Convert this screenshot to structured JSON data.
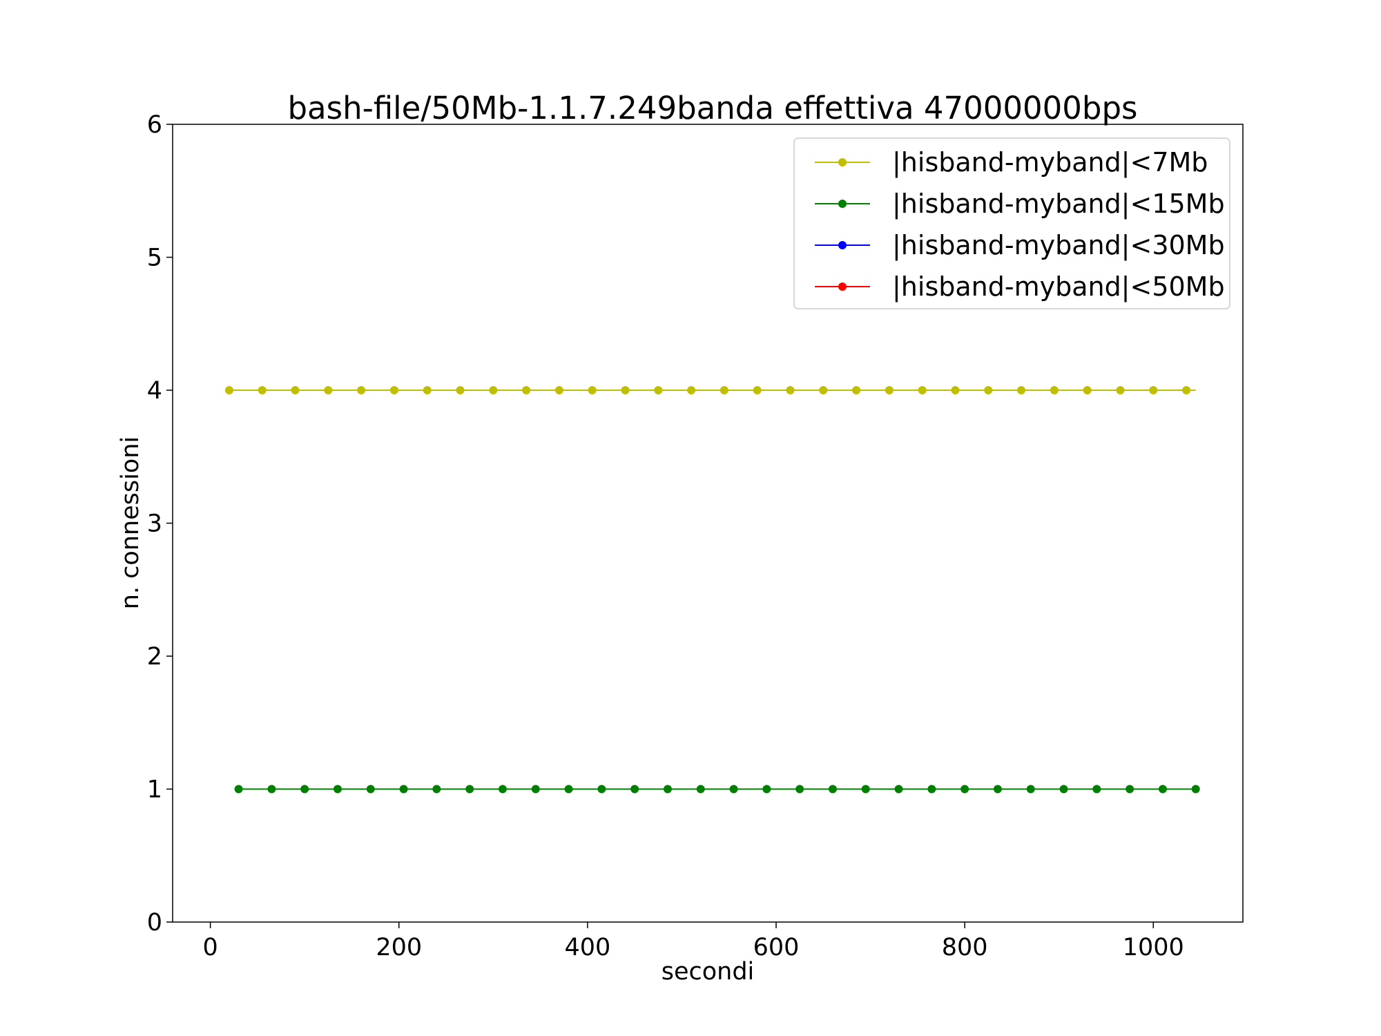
{
  "chart_data": {
    "type": "line",
    "title": "bash-file/50Mb-1.1.7.249banda effettiva 47000000bps",
    "xlabel": "secondi",
    "ylabel": "n. connessioni",
    "xlim": [
      -40,
      1095
    ],
    "ylim": [
      0,
      6
    ],
    "xticks": [
      0,
      200,
      400,
      600,
      800,
      1000
    ],
    "yticks": [
      0,
      1,
      2,
      3,
      4,
      5,
      6
    ],
    "grid": false,
    "legend_position": "top-right",
    "series": [
      {
        "name": "|hisband-myband|<7Mb",
        "color": "#bfbf00",
        "x": [
          20,
          55,
          90,
          125,
          160,
          195,
          230,
          265,
          300,
          335,
          370,
          405,
          440,
          475,
          510,
          545,
          580,
          615,
          650,
          685,
          720,
          755,
          790,
          825,
          860,
          895,
          930,
          965,
          1000,
          1035
        ],
        "y": [
          4,
          4,
          4,
          4,
          4,
          4,
          4,
          4,
          4,
          4,
          4,
          4,
          4,
          4,
          4,
          4,
          4,
          4,
          4,
          4,
          4,
          4,
          4,
          4,
          4,
          4,
          4,
          4,
          4,
          4
        ],
        "line_end_x": 1045
      },
      {
        "name": "|hisband-myband|<15Mb",
        "color": "#008000",
        "x": [
          30,
          65,
          100,
          135,
          170,
          205,
          240,
          275,
          310,
          345,
          380,
          415,
          450,
          485,
          520,
          555,
          590,
          625,
          660,
          695,
          730,
          765,
          800,
          835,
          870,
          905,
          940,
          975,
          1010,
          1045
        ],
        "y": [
          1,
          1,
          1,
          1,
          1,
          1,
          1,
          1,
          1,
          1,
          1,
          1,
          1,
          1,
          1,
          1,
          1,
          1,
          1,
          1,
          1,
          1,
          1,
          1,
          1,
          1,
          1,
          1,
          1,
          1
        ]
      },
      {
        "name": "|hisband-myband|<30Mb",
        "color": "#0000ff",
        "x": [],
        "y": []
      },
      {
        "name": "|hisband-myband|<50Mb",
        "color": "#ff0000",
        "x": [],
        "y": []
      }
    ]
  }
}
